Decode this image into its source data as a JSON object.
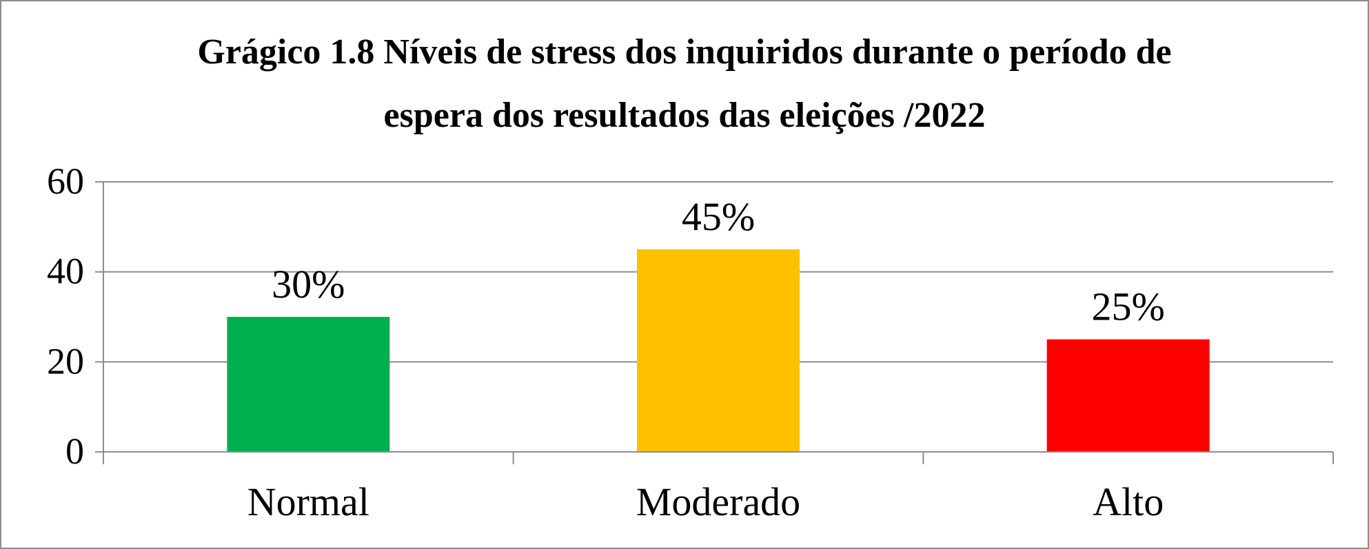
{
  "chart_data": {
    "type": "bar",
    "title": "Grágico 1.8 Níveis de stress dos inquiridos durante o período de espera dos resultados das eleições /2022",
    "title_lines": [
      "Grágico 1.8 Níveis de stress dos inquiridos durante o período de",
      "espera dos resultados das eleições /2022"
    ],
    "categories": [
      "Normal",
      "Moderado",
      "Alto"
    ],
    "values": [
      30,
      45,
      25
    ],
    "data_labels": [
      "30%",
      "45%",
      "25%"
    ],
    "colors": [
      "#00b050",
      "#ffc000",
      "#ff0000"
    ],
    "y_ticks": [
      0,
      20,
      40,
      60
    ],
    "ylim": [
      0,
      60
    ],
    "xlabel": "",
    "ylabel": "",
    "grid": true,
    "legend": "none"
  }
}
